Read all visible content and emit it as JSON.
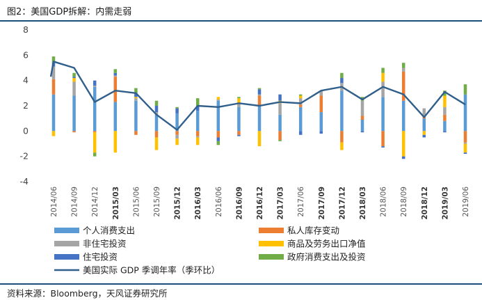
{
  "header": {
    "title": "图2：美国GDP拆解：内需走弱"
  },
  "footer": {
    "source": "资料来源：Bloomberg，天风证券研究所"
  },
  "chart_data": {
    "type": "bar",
    "stacked": true,
    "title": "图2：美国GDP拆解：内需走弱",
    "ylim": [
      -4,
      8
    ],
    "yticks": [
      -4,
      -2,
      0,
      2,
      4,
      6,
      8
    ],
    "categories": [
      "2014/06",
      "2014/09",
      "2014/12",
      "2015/03",
      "2015/06",
      "2015/09",
      "2015/12",
      "2016/03",
      "2016/06",
      "2016/09",
      "2016/12",
      "2017/03",
      "2017/06",
      "2017/09",
      "2017/12",
      "2018/03",
      "2018/06",
      "2018/09",
      "2018/12",
      "2019/03",
      "2019/06"
    ],
    "bold_ticks": [
      "2015/03",
      "2015/12",
      "2016/03",
      "2016/09",
      "2016/12",
      "2017/03",
      "2017/09",
      "2017/12",
      "2018/03",
      "2018/12",
      "2019/03"
    ],
    "series": [
      {
        "name": "个人消费支出",
        "color": "#5b9bd5",
        "values": [
          2.9,
          2.8,
          3.5,
          2.3,
          2.4,
          1.3,
          1.4,
          1.6,
          2.4,
          1.9,
          2.0,
          1.3,
          1.9,
          1.5,
          3.2,
          0.9,
          2.7,
          2.4,
          1.0,
          0.8,
          2.9
        ]
      },
      {
        "name": "私人库存变动",
        "color": "#ed7d31",
        "values": [
          1.2,
          -0.1,
          -0.1,
          2.0,
          -0.3,
          -0.5,
          -0.3,
          -0.4,
          -0.5,
          -0.3,
          0.8,
          -0.7,
          0.2,
          1.3,
          -0.9,
          0.3,
          -1.2,
          2.3,
          0.1,
          0.5,
          -0.9
        ]
      },
      {
        "name": "非住宅投资",
        "color": "#a5a5a5",
        "values": [
          1.0,
          1.1,
          0.1,
          0.1,
          0.2,
          0.2,
          -0.3,
          -0.1,
          0.1,
          0.3,
          0.1,
          0.9,
          0.5,
          0.4,
          0.6,
          1.2,
          1.2,
          0.3,
          0.7,
          0.6,
          -0.1
        ]
      },
      {
        "name": "商品及劳务出口净值",
        "color": "#ffc000",
        "values": [
          -0.4,
          0.3,
          -1.6,
          -1.7,
          0.1,
          -1.0,
          -0.5,
          -0.6,
          0.2,
          0.4,
          -1.2,
          0.2,
          0.2,
          0.0,
          -0.6,
          0.0,
          0.7,
          -2.0,
          -0.3,
          0.9,
          -0.7
        ]
      },
      {
        "name": "住宅投资",
        "color": "#4472c4",
        "values": [
          0.3,
          0.1,
          0.4,
          0.2,
          0.3,
          0.5,
          0.4,
          0.4,
          -0.3,
          -0.1,
          0.4,
          0.5,
          -0.3,
          -0.2,
          0.4,
          -0.1,
          -0.1,
          -0.2,
          -0.2,
          -0.1,
          -0.1
        ]
      },
      {
        "name": "政府消费支出及投资",
        "color": "#70ad47",
        "values": [
          0.5,
          0.3,
          -0.3,
          0.3,
          0.4,
          0.4,
          0.1,
          0.6,
          -0.3,
          0.1,
          0.1,
          -0.1,
          0.1,
          0.0,
          0.4,
          0.3,
          0.4,
          0.4,
          0.0,
          0.4,
          0.8
        ]
      }
    ],
    "line": {
      "name": "美国实际 GDP 季调年率（季环比）",
      "color": "#2f5f8a",
      "start": 4.3,
      "values": [
        5.5,
        5.0,
        2.3,
        3.2,
        3.0,
        1.3,
        0.1,
        2.0,
        1.9,
        2.2,
        2.0,
        2.3,
        2.2,
        3.2,
        3.5,
        2.5,
        3.5,
        2.9,
        1.1,
        3.1,
        2.1
      ]
    },
    "legend": {
      "position": "bottom",
      "order": [
        "个人消费支出",
        "私人库存变动",
        "非住宅投资",
        "商品及劳务出口净值",
        "住宅投资",
        "政府消费支出及投资",
        "美国实际 GDP 季调年率（季环比）"
      ]
    }
  }
}
